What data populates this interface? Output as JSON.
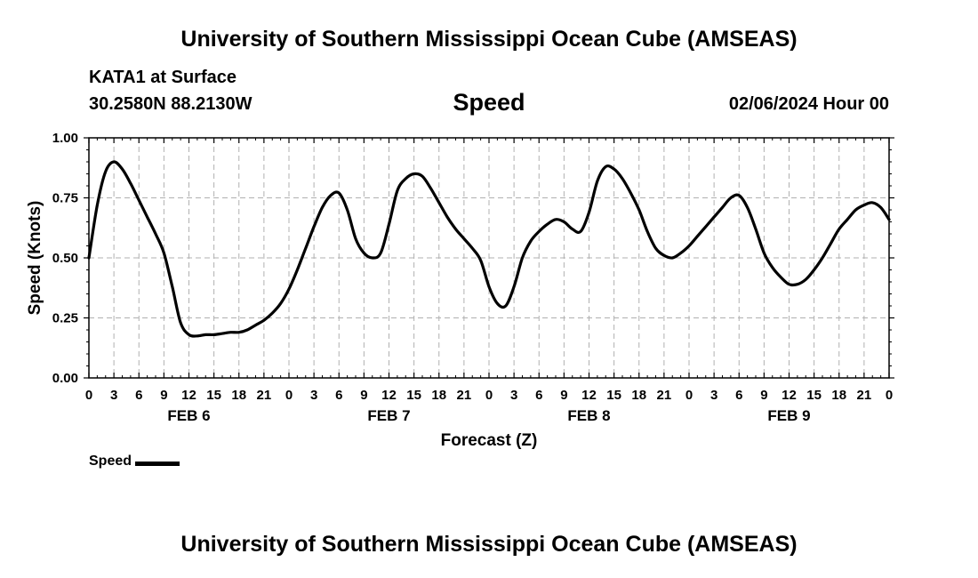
{
  "header": {
    "title": "University of Southern Mississippi Ocean Cube (AMSEAS)",
    "station": "KATA1 at Surface",
    "coords": "30.2580N  88.2130W",
    "variable": "Speed",
    "datetime": "02/06/2024 Hour 00"
  },
  "footer": {
    "title": "University of Southern Mississippi Ocean Cube (AMSEAS)"
  },
  "legend": {
    "label": "Speed"
  },
  "colors": {
    "line": "#000000",
    "grid": "#b0b0b0"
  },
  "chart_data": {
    "type": "line",
    "title": "Speed",
    "xlabel": "Forecast (Z)",
    "ylabel": "Speed (Knots)",
    "ylim": [
      0,
      1
    ],
    "xlim": [
      0,
      96
    ],
    "yticks": [
      0,
      0.25,
      0.5,
      0.75,
      1.0
    ],
    "ytick_labels": [
      "0.00",
      "0.25",
      "0.50",
      "0.75",
      "1.00"
    ],
    "xticks": [
      0,
      3,
      6,
      9,
      12,
      15,
      18,
      21,
      24,
      27,
      30,
      33,
      36,
      39,
      42,
      45,
      48,
      51,
      54,
      57,
      60,
      63,
      66,
      69,
      72,
      75,
      78,
      81,
      84,
      87,
      90,
      93,
      96
    ],
    "xtick_labels": [
      "0",
      "3",
      "6",
      "9",
      "12",
      "15",
      "18",
      "21",
      "0",
      "3",
      "6",
      "9",
      "12",
      "15",
      "18",
      "21",
      "0",
      "3",
      "6",
      "9",
      "12",
      "15",
      "18",
      "21",
      "0",
      "3",
      "6",
      "9",
      "12",
      "15",
      "18",
      "21",
      "0"
    ],
    "day_labels": [
      {
        "label": "FEB 6",
        "center_hour": 12
      },
      {
        "label": "FEB 7",
        "center_hour": 36
      },
      {
        "label": "FEB 8",
        "center_hour": 60
      },
      {
        "label": "FEB 9",
        "center_hour": 84
      }
    ],
    "grid": true,
    "series": [
      {
        "name": "Speed",
        "x": [
          0,
          1,
          2,
          3,
          4,
          5,
          6,
          7,
          8,
          9,
          10,
          11,
          12,
          13,
          14,
          15,
          16,
          17,
          18,
          19,
          20,
          21,
          22,
          23,
          24,
          25,
          26,
          27,
          28,
          29,
          30,
          31,
          32,
          33,
          34,
          35,
          36,
          37,
          38,
          39,
          40,
          41,
          42,
          43,
          44,
          45,
          46,
          47,
          48,
          49,
          50,
          51,
          52,
          53,
          54,
          55,
          56,
          57,
          58,
          59,
          60,
          61,
          62,
          63,
          64,
          65,
          66,
          67,
          68,
          69,
          70,
          71,
          72,
          73,
          74,
          75,
          76,
          77,
          78,
          79,
          80,
          81,
          82,
          83,
          84,
          85,
          86,
          87,
          88,
          89,
          90,
          91,
          92,
          93,
          94,
          95,
          96
        ],
        "values": [
          0.5,
          0.72,
          0.86,
          0.9,
          0.87,
          0.81,
          0.74,
          0.67,
          0.6,
          0.52,
          0.38,
          0.23,
          0.18,
          0.175,
          0.18,
          0.18,
          0.185,
          0.19,
          0.19,
          0.2,
          0.22,
          0.24,
          0.27,
          0.31,
          0.37,
          0.45,
          0.54,
          0.63,
          0.71,
          0.76,
          0.77,
          0.7,
          0.58,
          0.52,
          0.5,
          0.52,
          0.64,
          0.78,
          0.83,
          0.85,
          0.84,
          0.79,
          0.73,
          0.67,
          0.62,
          0.58,
          0.54,
          0.49,
          0.38,
          0.31,
          0.3,
          0.38,
          0.5,
          0.57,
          0.61,
          0.64,
          0.66,
          0.65,
          0.62,
          0.61,
          0.69,
          0.82,
          0.88,
          0.87,
          0.83,
          0.77,
          0.7,
          0.61,
          0.54,
          0.51,
          0.5,
          0.52,
          0.55,
          0.59,
          0.63,
          0.67,
          0.71,
          0.75,
          0.76,
          0.71,
          0.62,
          0.52,
          0.46,
          0.42,
          0.39,
          0.39,
          0.41,
          0.45,
          0.5,
          0.56,
          0.62,
          0.66,
          0.7,
          0.72,
          0.73,
          0.71,
          0.66
        ]
      }
    ]
  }
}
